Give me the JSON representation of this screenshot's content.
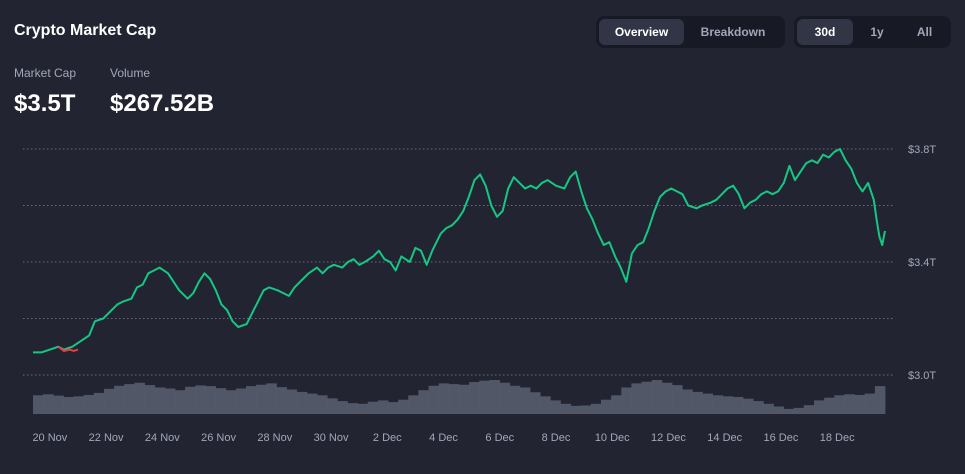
{
  "header": {
    "title": "Crypto Market Cap",
    "tabs": [
      {
        "label": "Overview",
        "active": true
      },
      {
        "label": "Breakdown",
        "active": false
      }
    ],
    "ranges": [
      {
        "label": "30d",
        "active": true
      },
      {
        "label": "1y",
        "active": false
      },
      {
        "label": "All",
        "active": false
      }
    ]
  },
  "stats": {
    "market_cap_label": "Market Cap",
    "market_cap_value": "$3.5T",
    "volume_label": "Volume",
    "volume_value": "$267.52B"
  },
  "colors": {
    "background": "#222531",
    "line_up": "#16c784",
    "line_down": "#ea3943",
    "volume": "#575d6e",
    "grid": "#a1a7bb",
    "text_muted": "#a1a7bb"
  },
  "chart_data": {
    "type": "area",
    "ylim": [
      2.9,
      3.8
    ],
    "y_ticks": [
      {
        "value": 3.8,
        "label": "$3.8T"
      },
      {
        "value": 3.4,
        "label": "$3.4T"
      },
      {
        "value": 3.0,
        "label": "$3.0T"
      }
    ],
    "y_grid_values": [
      3.8,
      3.6,
      3.4,
      3.2,
      3.0
    ],
    "x_range": [
      0,
      30.3
    ],
    "x_ticks": [
      {
        "day": 0.6,
        "label": "20 Nov"
      },
      {
        "day": 2.6,
        "label": "22 Nov"
      },
      {
        "day": 4.6,
        "label": "24 Nov"
      },
      {
        "day": 6.6,
        "label": "26 Nov"
      },
      {
        "day": 8.6,
        "label": "28 Nov"
      },
      {
        "day": 10.6,
        "label": "30 Nov"
      },
      {
        "day": 12.6,
        "label": "2 Dec"
      },
      {
        "day": 14.6,
        "label": "4 Dec"
      },
      {
        "day": 16.6,
        "label": "6 Dec"
      },
      {
        "day": 18.6,
        "label": "8 Dec"
      },
      {
        "day": 20.6,
        "label": "10 Dec"
      },
      {
        "day": 22.6,
        "label": "12 Dec"
      },
      {
        "day": 24.6,
        "label": "14 Dec"
      },
      {
        "day": 26.6,
        "label": "16 Dec"
      },
      {
        "day": 28.6,
        "label": "18 Dec"
      }
    ],
    "series": [
      {
        "values": [
          [
            0.0,
            3.08
          ],
          [
            0.3,
            3.08
          ],
          [
            0.6,
            3.09
          ],
          [
            0.9,
            3.1
          ],
          [
            1.1,
            3.09
          ],
          [
            1.4,
            3.1
          ],
          [
            1.7,
            3.12
          ],
          [
            2.0,
            3.14
          ],
          [
            2.2,
            3.19
          ],
          [
            2.5,
            3.2
          ],
          [
            2.7,
            3.22
          ],
          [
            3.0,
            3.25
          ],
          [
            3.2,
            3.26
          ],
          [
            3.5,
            3.27
          ],
          [
            3.7,
            3.31
          ],
          [
            3.9,
            3.32
          ],
          [
            4.1,
            3.36
          ],
          [
            4.3,
            3.37
          ],
          [
            4.5,
            3.38
          ],
          [
            4.8,
            3.36
          ],
          [
            5.0,
            3.33
          ],
          [
            5.2,
            3.3
          ],
          [
            5.5,
            3.27
          ],
          [
            5.7,
            3.29
          ],
          [
            5.9,
            3.33
          ],
          [
            6.1,
            3.36
          ],
          [
            6.3,
            3.34
          ],
          [
            6.5,
            3.3
          ],
          [
            6.7,
            3.25
          ],
          [
            6.9,
            3.23
          ],
          [
            7.1,
            3.19
          ],
          [
            7.3,
            3.17
          ],
          [
            7.6,
            3.18
          ],
          [
            7.8,
            3.22
          ],
          [
            8.0,
            3.26
          ],
          [
            8.2,
            3.3
          ],
          [
            8.4,
            3.31
          ],
          [
            8.7,
            3.3
          ],
          [
            8.9,
            3.29
          ],
          [
            9.1,
            3.28
          ],
          [
            9.3,
            3.31
          ],
          [
            9.6,
            3.34
          ],
          [
            9.8,
            3.36
          ],
          [
            10.1,
            3.38
          ],
          [
            10.3,
            3.36
          ],
          [
            10.5,
            3.38
          ],
          [
            10.7,
            3.39
          ],
          [
            11.0,
            3.38
          ],
          [
            11.2,
            3.4
          ],
          [
            11.4,
            3.41
          ],
          [
            11.6,
            3.39
          ],
          [
            11.8,
            3.4
          ],
          [
            12.1,
            3.42
          ],
          [
            12.3,
            3.44
          ],
          [
            12.5,
            3.41
          ],
          [
            12.7,
            3.4
          ],
          [
            12.9,
            3.37
          ],
          [
            13.1,
            3.42
          ],
          [
            13.4,
            3.4
          ],
          [
            13.6,
            3.45
          ],
          [
            13.8,
            3.44
          ],
          [
            14.0,
            3.39
          ],
          [
            14.2,
            3.44
          ],
          [
            14.5,
            3.5
          ],
          [
            14.7,
            3.52
          ],
          [
            14.9,
            3.53
          ],
          [
            15.1,
            3.55
          ],
          [
            15.3,
            3.58
          ],
          [
            15.5,
            3.63
          ],
          [
            15.7,
            3.69
          ],
          [
            15.9,
            3.71
          ],
          [
            16.1,
            3.67
          ],
          [
            16.3,
            3.6
          ],
          [
            16.5,
            3.56
          ],
          [
            16.7,
            3.58
          ],
          [
            16.9,
            3.66
          ],
          [
            17.1,
            3.7
          ],
          [
            17.3,
            3.68
          ],
          [
            17.5,
            3.66
          ],
          [
            17.7,
            3.67
          ],
          [
            17.9,
            3.66
          ],
          [
            18.1,
            3.68
          ],
          [
            18.3,
            3.69
          ],
          [
            18.6,
            3.67
          ],
          [
            18.9,
            3.66
          ],
          [
            19.1,
            3.7
          ],
          [
            19.3,
            3.72
          ],
          [
            19.5,
            3.65
          ],
          [
            19.7,
            3.59
          ],
          [
            19.9,
            3.55
          ],
          [
            20.1,
            3.5
          ],
          [
            20.3,
            3.46
          ],
          [
            20.5,
            3.47
          ],
          [
            20.7,
            3.42
          ],
          [
            20.9,
            3.38
          ],
          [
            21.1,
            3.33
          ],
          [
            21.3,
            3.43
          ],
          [
            21.5,
            3.46
          ],
          [
            21.7,
            3.47
          ],
          [
            21.9,
            3.52
          ],
          [
            22.1,
            3.58
          ],
          [
            22.3,
            3.63
          ],
          [
            22.5,
            3.65
          ],
          [
            22.7,
            3.66
          ],
          [
            22.9,
            3.65
          ],
          [
            23.1,
            3.64
          ],
          [
            23.3,
            3.6
          ],
          [
            23.6,
            3.59
          ],
          [
            23.8,
            3.6
          ],
          [
            24.1,
            3.61
          ],
          [
            24.3,
            3.62
          ],
          [
            24.5,
            3.64
          ],
          [
            24.7,
            3.66
          ],
          [
            24.9,
            3.67
          ],
          [
            25.1,
            3.64
          ],
          [
            25.3,
            3.59
          ],
          [
            25.5,
            3.61
          ],
          [
            25.7,
            3.62
          ],
          [
            25.9,
            3.64
          ],
          [
            26.1,
            3.65
          ],
          [
            26.3,
            3.64
          ],
          [
            26.5,
            3.65
          ],
          [
            26.7,
            3.68
          ],
          [
            26.9,
            3.74
          ],
          [
            27.1,
            3.69
          ],
          [
            27.3,
            3.72
          ],
          [
            27.5,
            3.75
          ],
          [
            27.7,
            3.76
          ],
          [
            27.9,
            3.75
          ],
          [
            28.1,
            3.78
          ],
          [
            28.3,
            3.77
          ],
          [
            28.5,
            3.79
          ],
          [
            28.7,
            3.8
          ],
          [
            28.9,
            3.76
          ],
          [
            29.1,
            3.73
          ],
          [
            29.3,
            3.68
          ],
          [
            29.5,
            3.65
          ],
          [
            29.7,
            3.68
          ],
          [
            29.9,
            3.62
          ],
          [
            30.0,
            3.55
          ],
          [
            30.1,
            3.49
          ],
          [
            30.2,
            3.46
          ],
          [
            30.3,
            3.51
          ]
        ]
      }
    ],
    "down_segment": [
      [
        0.9,
        3.1
      ],
      [
        1.1,
        3.085
      ],
      [
        1.3,
        3.09
      ],
      [
        1.45,
        3.085
      ],
      [
        1.6,
        3.09
      ]
    ],
    "volume_bars": [
      0.55,
      0.58,
      0.54,
      0.5,
      0.52,
      0.56,
      0.62,
      0.74,
      0.83,
      0.88,
      0.92,
      0.85,
      0.78,
      0.75,
      0.7,
      0.8,
      0.84,
      0.82,
      0.76,
      0.7,
      0.75,
      0.82,
      0.86,
      0.9,
      0.79,
      0.72,
      0.65,
      0.6,
      0.55,
      0.46,
      0.38,
      0.32,
      0.3,
      0.36,
      0.4,
      0.35,
      0.42,
      0.55,
      0.7,
      0.83,
      0.9,
      0.88,
      0.86,
      0.94,
      0.98,
      1.0,
      0.92,
      0.83,
      0.78,
      0.64,
      0.52,
      0.4,
      0.3,
      0.24,
      0.25,
      0.3,
      0.42,
      0.55,
      0.78,
      0.9,
      0.95,
      1.0,
      0.92,
      0.85,
      0.72,
      0.65,
      0.6,
      0.55,
      0.52,
      0.5,
      0.45,
      0.38,
      0.3,
      0.22,
      0.15,
      0.18,
      0.26,
      0.4,
      0.48,
      0.55,
      0.58,
      0.56,
      0.6,
      0.82
    ]
  }
}
